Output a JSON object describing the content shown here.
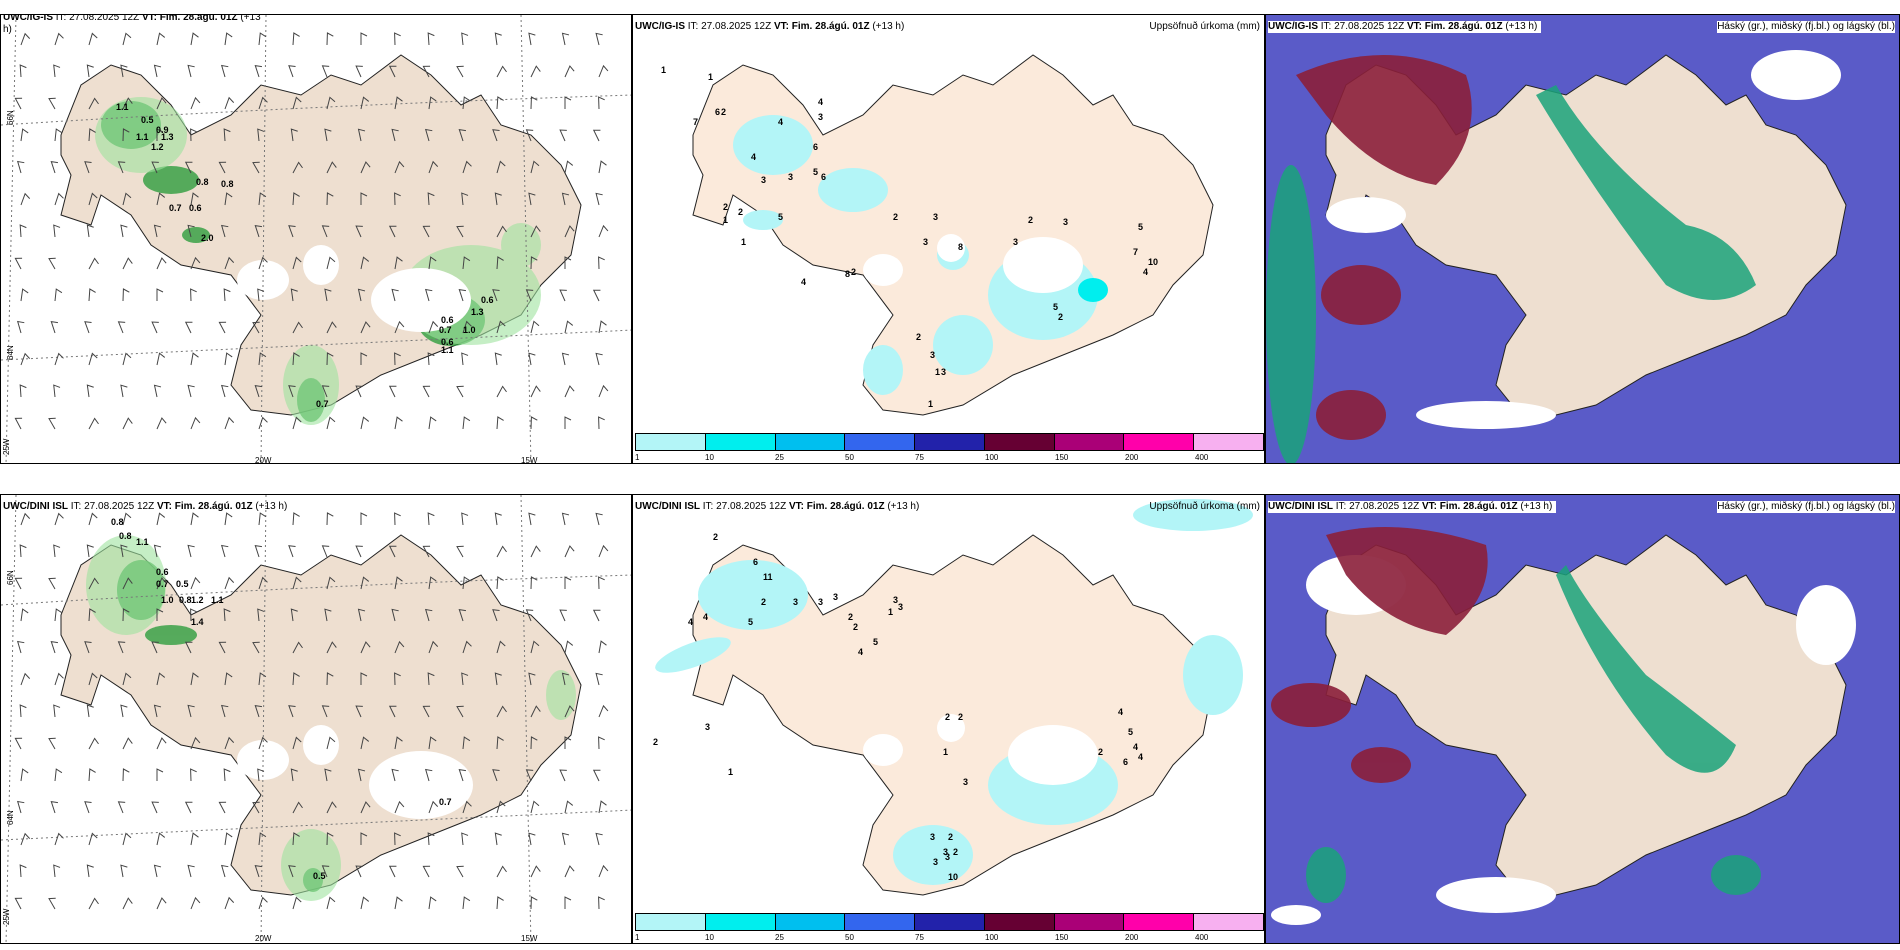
{
  "top_row": {
    "wind": {
      "model": "UWC/IG-IS",
      "issue": "IT: 27.08.2025 12Z",
      "valid": "VT: Fim. 28.ágú. 01Z",
      "lead": "(+13",
      "lead2": "h)",
      "labels": [
        "1.1",
        "0.5",
        "0.9",
        "1.1",
        "1.2",
        "1.3",
        "0.8",
        "0.7",
        "0.6",
        "0.8",
        "2.0",
        "0.6",
        "0.6",
        "0.7",
        "1.0",
        "0.6",
        "1.1",
        "1.3",
        "0.7"
      ]
    },
    "precip": {
      "model": "UWC/IG-IS",
      "issue": "IT: 27.08.2025 12Z",
      "valid": "VT: Fim. 28.ágú. 01Z",
      "lead": "(+13 h)",
      "field": "Uppsöfnuð úrkoma (mm)",
      "labels": [
        "1",
        "1",
        "2",
        "7",
        "6",
        "4",
        "3",
        "6",
        "5",
        "6",
        "4",
        "3",
        "3",
        "4",
        "2",
        "2",
        "1",
        "1",
        "5",
        "2",
        "3",
        "3",
        "8",
        "2",
        "4",
        "8",
        "2",
        "3",
        "3",
        "1",
        "1",
        "3",
        "2",
        "5",
        "3",
        "7",
        "4",
        "10",
        "5",
        "2"
      ]
    },
    "cloud": {
      "model": "UWC/IG-IS",
      "issue": "IT: 27.08.2025 12Z",
      "valid": "VT: Fim. 28.ágú. 01Z",
      "lead": "(+13 h)",
      "field": "Háský (gr.), miðský (fj.bl.) og lágský (bl.)"
    }
  },
  "bottom_row": {
    "wind": {
      "model": "UWC/DINI ISL",
      "issue": "IT: 27.08.2025 12Z",
      "valid": "VT: Fim. 28.ágú. 01Z",
      "lead": "(+13 h)",
      "labels": [
        "0.8",
        "0.8",
        "1.1",
        "0.6",
        "0.7",
        "0.5",
        "1.0",
        "0.8",
        "1.2",
        "1.1",
        "1.4",
        "0.7",
        "0.5"
      ]
    },
    "precip": {
      "model": "UWC/DINI ISL",
      "issue": "IT: 27.08.2025 12Z",
      "valid": "VT: Fim. 28.ágú. 01Z",
      "lead": "(+13 h)",
      "field": "Uppsöfnuð úrkoma (mm)",
      "labels": [
        "2",
        "6",
        "11",
        "4",
        "4",
        "5",
        "2",
        "1",
        "3",
        "2",
        "3",
        "3",
        "3",
        "2",
        "2",
        "4",
        "5",
        "1",
        "3",
        "3",
        "2",
        "2",
        "1",
        "3",
        "3",
        "2",
        "3",
        "3",
        "2",
        "3",
        "10",
        "4",
        "5",
        "4",
        "4",
        "6",
        "2"
      ]
    },
    "cloud": {
      "model": "UWC/DINI ISL",
      "issue": "IT: 27.08.2025 12Z",
      "valid": "VT: Fim. 28.ágú. 01Z",
      "lead": "(+13 h)",
      "field": "Háský (gr.), miðský (fj.bl.) og lágský (bl.)"
    }
  },
  "axes": {
    "lat_66": "66N",
    "lat_64": "64N",
    "lon_25": "25W",
    "lon_20": "20W",
    "lon_15": "15W"
  },
  "colorbar": {
    "ticks": [
      "1",
      "10",
      "25",
      "50",
      "75",
      "100",
      "150",
      "200",
      "400"
    ],
    "colors": [
      "#b3f5f7",
      "#00eeee",
      "#00bfef",
      "#3366ee",
      "#2222aa",
      "#660033",
      "#aa0077",
      "#ff00aa",
      "#f7b0f0"
    ]
  },
  "colors": {
    "land": "#eedfd0",
    "precip_light": "#b3f5f7",
    "wind_green": "#2f9e3f",
    "low_cloud": "#5a5bc8",
    "mid_cloud": "#1aa37a",
    "high_cloud": "#8b1f3a"
  }
}
